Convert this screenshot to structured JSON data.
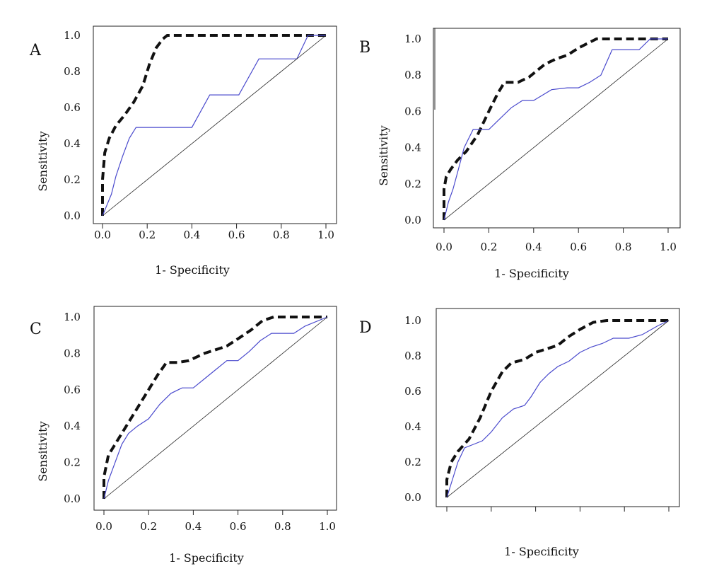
{
  "colors": {
    "solid": "#4a4acd",
    "dashed": "#111111",
    "reference": "#222222"
  },
  "chart_data": [
    {
      "type": "line",
      "panel": "A",
      "xlabel": "1- Specificity",
      "ylabel": "Sensitivity",
      "xlim": [
        0,
        1
      ],
      "ylim": [
        0,
        1
      ],
      "x_ticks": [
        "0.0",
        "0.2",
        "0.4",
        "0.6",
        "0.8",
        "1.0"
      ],
      "y_ticks": [
        "0.0",
        "0.2",
        "0.4",
        "0.6",
        "0.8",
        "1.0"
      ],
      "legend": "none",
      "series": [
        {
          "style": "dashed",
          "x": [
            0,
            0,
            0.01,
            0.03,
            0.06,
            0.1,
            0.14,
            0.18,
            0.21,
            0.24,
            0.27,
            0.29,
            0.5,
            0.75,
            1.0
          ],
          "y": [
            0,
            0.2,
            0.35,
            0.43,
            0.5,
            0.56,
            0.63,
            0.72,
            0.84,
            0.93,
            0.98,
            1.0,
            1.0,
            1.0,
            1.0
          ]
        },
        {
          "style": "solid",
          "x": [
            0,
            0.02,
            0.04,
            0.06,
            0.09,
            0.12,
            0.15,
            0.25,
            0.4,
            0.48,
            0.61,
            0.7,
            0.87,
            0.92,
            1.0
          ],
          "y": [
            0,
            0.06,
            0.12,
            0.22,
            0.33,
            0.43,
            0.49,
            0.49,
            0.49,
            0.67,
            0.67,
            0.87,
            0.87,
            1.0,
            1.0
          ]
        },
        {
          "style": "reference",
          "x": [
            0,
            1
          ],
          "y": [
            0,
            1
          ]
        }
      ]
    },
    {
      "type": "line",
      "panel": "B",
      "xlabel": "1- Specificity",
      "ylabel": "Sensitivity",
      "xlim": [
        0,
        1
      ],
      "ylim": [
        0,
        1
      ],
      "x_ticks": [
        "0.0",
        "0.2",
        "0.4",
        "0.6",
        "0.8",
        "1.0"
      ],
      "y_ticks": [
        "0.0",
        "0.2",
        "0.4",
        "0.6",
        "0.8",
        "1.0"
      ],
      "legend": "none",
      "series": [
        {
          "style": "dashed",
          "x": [
            0,
            0,
            0.01,
            0.03,
            0.06,
            0.1,
            0.15,
            0.2,
            0.24,
            0.27,
            0.33,
            0.38,
            0.45,
            0.5,
            0.55,
            0.6,
            0.68,
            0.75,
            0.85,
            1.0
          ],
          "y": [
            0,
            0.17,
            0.24,
            0.28,
            0.33,
            0.38,
            0.47,
            0.6,
            0.7,
            0.76,
            0.76,
            0.79,
            0.86,
            0.89,
            0.91,
            0.95,
            1.0,
            1.0,
            1.0,
            1.0
          ]
        },
        {
          "style": "solid",
          "x": [
            0,
            0.02,
            0.04,
            0.06,
            0.09,
            0.13,
            0.2,
            0.25,
            0.3,
            0.35,
            0.4,
            0.48,
            0.55,
            0.6,
            0.65,
            0.7,
            0.75,
            0.87,
            0.92,
            1.0
          ],
          "y": [
            0,
            0.1,
            0.17,
            0.26,
            0.4,
            0.5,
            0.5,
            0.56,
            0.62,
            0.66,
            0.66,
            0.72,
            0.73,
            0.73,
            0.76,
            0.8,
            0.94,
            0.94,
            1.0,
            1.0
          ]
        },
        {
          "style": "reference",
          "x": [
            0,
            1
          ],
          "y": [
            0,
            1
          ]
        }
      ]
    },
    {
      "type": "line",
      "panel": "C",
      "xlabel": "1- Specificity",
      "ylabel": "Sensitivity",
      "xlim": [
        0,
        1
      ],
      "ylim": [
        0,
        1
      ],
      "x_ticks": [
        "0.0",
        "0.2",
        "0.4",
        "0.6",
        "0.8",
        "1.0"
      ],
      "y_ticks": [
        "0.0",
        "0.2",
        "0.4",
        "0.6",
        "0.8",
        "1.0"
      ],
      "legend": "none",
      "series": [
        {
          "style": "dashed",
          "x": [
            0,
            0,
            0.02,
            0.05,
            0.1,
            0.15,
            0.2,
            0.24,
            0.28,
            0.33,
            0.38,
            0.45,
            0.5,
            0.55,
            0.6,
            0.66,
            0.71,
            0.76,
            0.85,
            1.0
          ],
          "y": [
            0,
            0.12,
            0.24,
            0.3,
            0.4,
            0.5,
            0.6,
            0.68,
            0.75,
            0.75,
            0.76,
            0.8,
            0.82,
            0.84,
            0.88,
            0.93,
            0.98,
            1.0,
            1.0,
            1.0
          ]
        },
        {
          "style": "solid",
          "x": [
            0,
            0.02,
            0.05,
            0.08,
            0.11,
            0.15,
            0.2,
            0.25,
            0.3,
            0.35,
            0.4,
            0.45,
            0.5,
            0.55,
            0.6,
            0.65,
            0.7,
            0.75,
            0.85,
            0.9,
            1.0
          ],
          "y": [
            0,
            0.1,
            0.2,
            0.3,
            0.36,
            0.4,
            0.44,
            0.52,
            0.58,
            0.61,
            0.61,
            0.66,
            0.71,
            0.76,
            0.76,
            0.81,
            0.87,
            0.91,
            0.91,
            0.95,
            1.0
          ]
        },
        {
          "style": "reference",
          "x": [
            0,
            1
          ],
          "y": [
            0,
            1
          ]
        }
      ]
    },
    {
      "type": "line",
      "panel": "D",
      "xlabel": "1- Specificity",
      "ylabel": "",
      "xlim": [
        0,
        1
      ],
      "ylim": [
        0,
        1
      ],
      "x_ticks": [
        "",
        "",
        "",
        "",
        "",
        ""
      ],
      "y_ticks": [
        "0.0",
        "0.2",
        "0.4",
        "0.6",
        "0.8",
        "1.0"
      ],
      "legend": "none",
      "series": [
        {
          "style": "dashed",
          "x": [
            0,
            0,
            0.02,
            0.05,
            0.1,
            0.15,
            0.2,
            0.25,
            0.29,
            0.35,
            0.4,
            0.45,
            0.5,
            0.55,
            0.6,
            0.66,
            0.72,
            0.85,
            1.0
          ],
          "y": [
            0,
            0.1,
            0.2,
            0.26,
            0.33,
            0.45,
            0.6,
            0.71,
            0.76,
            0.78,
            0.82,
            0.84,
            0.86,
            0.91,
            0.95,
            0.99,
            1.0,
            1.0,
            1.0
          ]
        },
        {
          "style": "solid",
          "x": [
            0,
            0.02,
            0.05,
            0.08,
            0.12,
            0.16,
            0.2,
            0.25,
            0.3,
            0.35,
            0.38,
            0.42,
            0.46,
            0.5,
            0.55,
            0.6,
            0.65,
            0.7,
            0.75,
            0.82,
            0.88,
            0.95,
            1.0
          ],
          "y": [
            0,
            0.08,
            0.2,
            0.28,
            0.3,
            0.32,
            0.37,
            0.45,
            0.5,
            0.52,
            0.57,
            0.65,
            0.7,
            0.74,
            0.77,
            0.82,
            0.85,
            0.87,
            0.9,
            0.9,
            0.92,
            0.97,
            1.0
          ]
        },
        {
          "style": "reference",
          "x": [
            0,
            1
          ],
          "y": [
            0,
            1
          ]
        }
      ]
    }
  ]
}
